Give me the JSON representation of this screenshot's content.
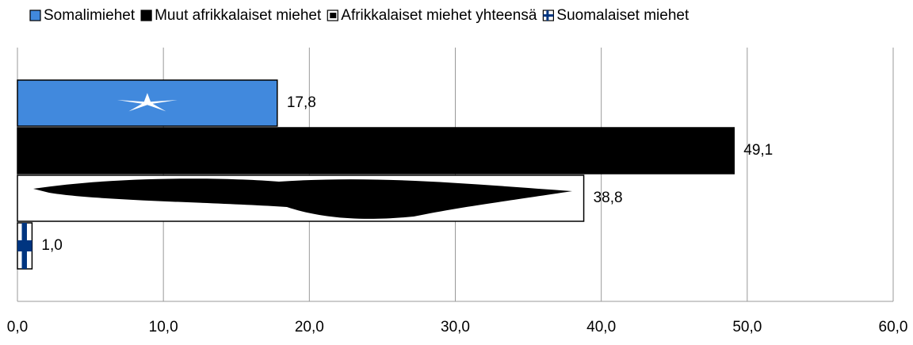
{
  "chart_data": {
    "type": "bar",
    "orientation": "horizontal",
    "series": [
      {
        "name": "Somalimiehet",
        "color": "#4189dd",
        "values": [
          17.8
        ],
        "value_labels": [
          "17,8"
        ]
      },
      {
        "name": "Muut afrikkalaiset miehet",
        "color": "#000000",
        "values": [
          49.1
        ],
        "value_labels": [
          "49,1"
        ]
      },
      {
        "name": "Afrikkalaiset miehet yhteensä",
        "color": "#ffffff",
        "values": [
          38.8
        ],
        "value_labels": [
          "38,8"
        ]
      },
      {
        "name": "Suomalaiset miehet",
        "color": "#ffffff",
        "values": [
          1.0
        ],
        "value_labels": [
          "1,0"
        ]
      }
    ],
    "xlim": [
      0,
      60
    ],
    "xticks": [
      {
        "value": 0,
        "label": "0,0"
      },
      {
        "value": 10,
        "label": "10,0"
      },
      {
        "value": 20,
        "label": "20,0"
      },
      {
        "value": 30,
        "label": "30,0"
      },
      {
        "value": 40,
        "label": "40,0"
      },
      {
        "value": 50,
        "label": "50,0"
      },
      {
        "value": 60,
        "label": "60,0"
      }
    ],
    "grid": true,
    "legend": "top"
  }
}
